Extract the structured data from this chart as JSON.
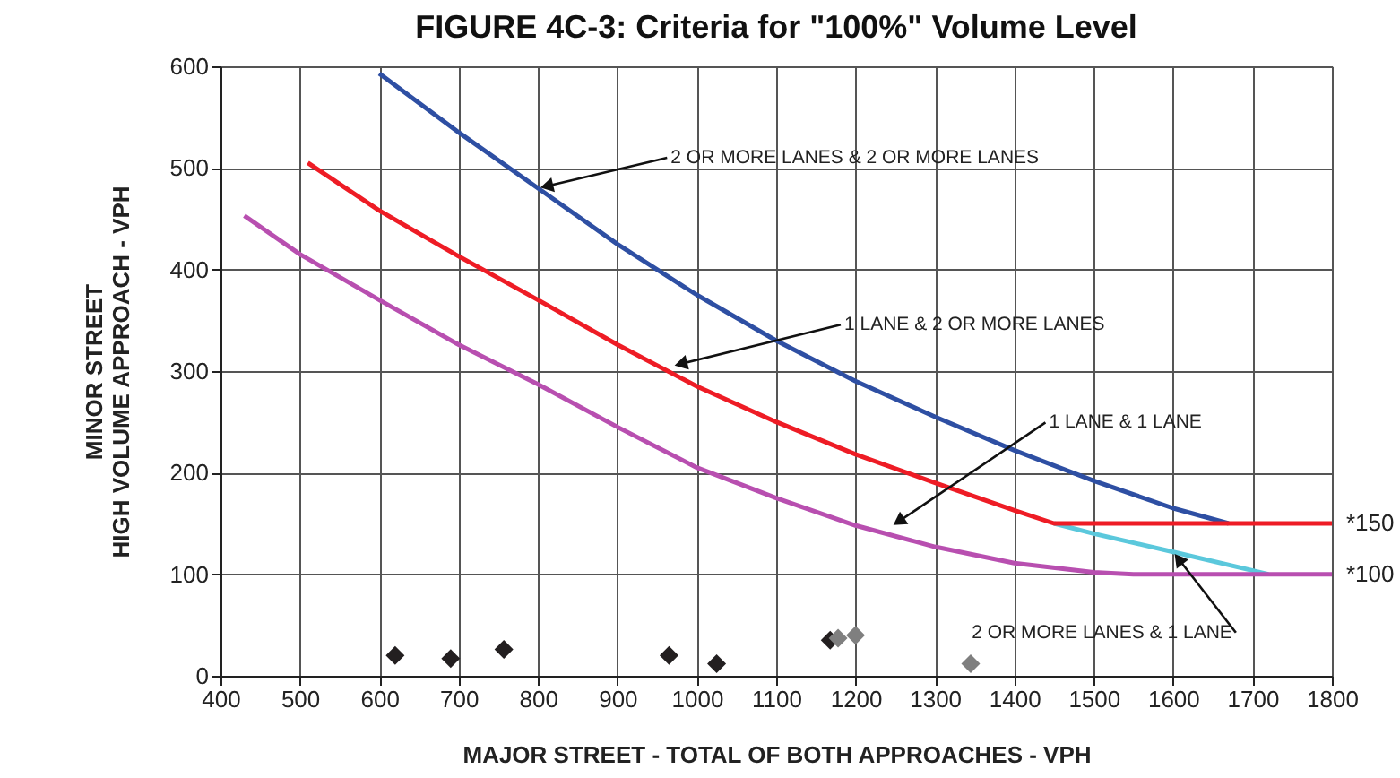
{
  "chart_data": {
    "type": "line",
    "title": "FIGURE 4C-3:  Criteria for \"100%\" Volume Level",
    "xlabel": "MAJOR STREET - TOTAL OF BOTH APPROACHES - VPH",
    "ylabel": "MINOR STREET\nHIGH VOLUME APPROACH - VPH",
    "xlim": [
      400,
      1800
    ],
    "xticks": [
      400,
      500,
      600,
      700,
      800,
      900,
      1000,
      1100,
      1200,
      1300,
      1400,
      1500,
      1600,
      1700,
      1800
    ],
    "ylim": [
      0,
      600
    ],
    "yticks": [
      0,
      100,
      200,
      300,
      400,
      500,
      600
    ],
    "grid": true,
    "line_style": "solid",
    "series": [
      {
        "color": "#2e4fa3",
        "x": [
          600,
          700,
          800,
          900,
          1000,
          1100,
          1200,
          1300,
          1400,
          1500,
          1600,
          1670
        ],
        "values": [
          593,
          535,
          480,
          425,
          375,
          330,
          290,
          255,
          222,
          192,
          165,
          150
        ]
      },
      {
        "color": "#5bc8dc",
        "x": [
          1450,
          1500,
          1600,
          1720
        ],
        "values": [
          150,
          140,
          122,
          100
        ]
      },
      {
        "color": "#ee1c25",
        "x": [
          510,
          600,
          700,
          800,
          900,
          1000,
          1100,
          1200,
          1300,
          1400,
          1450,
          1800
        ],
        "values": [
          505,
          458,
          413,
          370,
          326,
          285,
          250,
          218,
          190,
          163,
          150,
          150
        ]
      },
      {
        "color": "#b84fb0",
        "x": [
          430,
          500,
          600,
          700,
          800,
          900,
          1000,
          1100,
          1200,
          1300,
          1400,
          1500,
          1550,
          1800
        ],
        "values": [
          453,
          415,
          370,
          326,
          287,
          245,
          205,
          175,
          148,
          127,
          111,
          102,
          100,
          100
        ]
      },
      {
        "type": "scatter",
        "color": "#231f20",
        "marker": "diamond",
        "x": [
          620,
          690,
          757,
          965,
          1025,
          1168
        ],
        "values": [
          20,
          17,
          26,
          20,
          12,
          35
        ]
      },
      {
        "type": "scatter",
        "color": "#7f7f7f",
        "marker": "diamond",
        "x": [
          1178,
          1200,
          1345
        ],
        "values": [
          37,
          40,
          12
        ]
      }
    ],
    "annotations": [
      {
        "text": "2 OR MORE LANES & 2 OR MORE LANES",
        "x": 800,
        "y": 480
      },
      {
        "text": "1 LANE & 2 OR MORE LANES",
        "x": 969,
        "y": 305
      },
      {
        "text": "1 LANE & 1 LANE",
        "x": 1245,
        "y": 147
      },
      {
        "text": "2 OR MORE LANES & 1 LANE",
        "x": 1600,
        "y": 122
      },
      {
        "text": "*150",
        "x": 1800,
        "y": 150
      },
      {
        "text": "*100",
        "x": 1800,
        "y": 100
      }
    ]
  }
}
